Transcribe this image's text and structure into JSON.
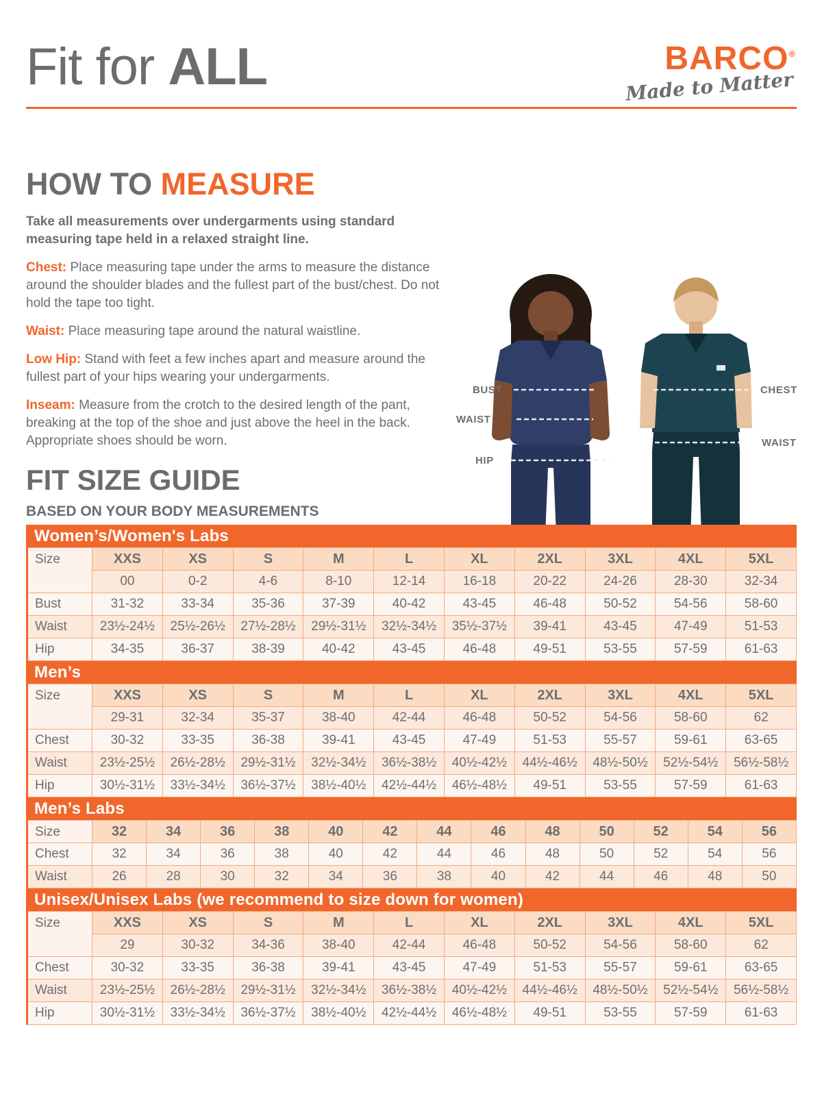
{
  "page_title": {
    "regular": "Fit for ",
    "bold": "ALL"
  },
  "brand": {
    "name": "BARCO",
    "registered": "®",
    "tagline": "Made to Matter"
  },
  "how_to_measure": {
    "heading_gray": "HOW TO ",
    "heading_orange": "MEASURE",
    "intro": "Take all measurements over undergarments using standard measuring tape held in a relaxed straight line.",
    "items": [
      {
        "label": "Chest:",
        "text": "Place measuring tape under the arms to measure the distance around the shoulder blades and the fullest part of the bust/chest. Do not hold the tape too tight."
      },
      {
        "label": "Waist:",
        "text": "Place measuring tape around the natural waistline."
      },
      {
        "label": "Low Hip:",
        "text": "Stand with feet a few inches apart and measure around the fullest part of your hips wearing your undergarments."
      },
      {
        "label": "Inseam:",
        "text": "Measure from the crotch to the desired length of the pant, breaking at the top of the shoe and just above the heel in the back. Appropriate shoes should be worn."
      }
    ]
  },
  "figure": {
    "woman_labels": [
      "BUST",
      "WAIST",
      "HIP"
    ],
    "man_labels": [
      "CHEST",
      "WAIST"
    ]
  },
  "size_guide": {
    "heading": "FIT SIZE GUIDE",
    "subheading": "BASED ON YOUR BODY MEASUREMENTS",
    "tables": [
      {
        "title": "Women’s/Women's Labs",
        "corner": "Size",
        "sizes": [
          "XXS",
          "XS",
          "S",
          "M",
          "L",
          "XL",
          "2XL",
          "3XL",
          "4XL",
          "5XL"
        ],
        "numeric": [
          "00",
          "0-2",
          "4-6",
          "8-10",
          "12-14",
          "16-18",
          "20-22",
          "24-26",
          "28-30",
          "32-34"
        ],
        "rows": [
          {
            "label": "Bust",
            "values": [
              "31-32",
              "33-34",
              "35-36",
              "37-39",
              "40-42",
              "43-45",
              "46-48",
              "50-52",
              "54-56",
              "58-60"
            ]
          },
          {
            "label": "Waist",
            "values": [
              "23½-24½",
              "25½-26½",
              "27½-28½",
              "29½-31½",
              "32½-34½",
              "35½-37½",
              "39-41",
              "43-45",
              "47-49",
              "51-53"
            ]
          },
          {
            "label": "Hip",
            "values": [
              "34-35",
              "36-37",
              "38-39",
              "40-42",
              "43-45",
              "46-48",
              "49-51",
              "53-55",
              "57-59",
              "61-63"
            ]
          }
        ]
      },
      {
        "title": "Men’s",
        "corner": "Size",
        "sizes": [
          "XXS",
          "XS",
          "S",
          "M",
          "L",
          "XL",
          "2XL",
          "3XL",
          "4XL",
          "5XL"
        ],
        "numeric": [
          "29-31",
          "32-34",
          "35-37",
          "38-40",
          "42-44",
          "46-48",
          "50-52",
          "54-56",
          "58-60",
          "62"
        ],
        "rows": [
          {
            "label": "Chest",
            "values": [
              "30-32",
              "33-35",
              "36-38",
              "39-41",
              "43-45",
              "47-49",
              "51-53",
              "55-57",
              "59-61",
              "63-65"
            ]
          },
          {
            "label": "Waist",
            "values": [
              "23½-25½",
              "26½-28½",
              "29½-31½",
              "32½-34½",
              "36½-38½",
              "40½-42½",
              "44½-46½",
              "48½-50½",
              "52½-54½",
              "56½-58½"
            ]
          },
          {
            "label": "Hip",
            "values": [
              "30½-31½",
              "33½-34½",
              "36½-37½",
              "38½-40½",
              "42½-44½",
              "46½-48½",
              "49-51",
              "53-55",
              "57-59",
              "61-63"
            ]
          }
        ]
      },
      {
        "title": "Men’s Labs",
        "corner": "Size",
        "sizes": [
          "32",
          "34",
          "36",
          "38",
          "40",
          "42",
          "44",
          "46",
          "48",
          "50",
          "52",
          "54",
          "56"
        ],
        "rows": [
          {
            "label": "Chest",
            "values": [
              "32",
              "34",
              "36",
              "38",
              "40",
              "42",
              "44",
              "46",
              "48",
              "50",
              "52",
              "54",
              "56"
            ]
          },
          {
            "label": "Waist",
            "values": [
              "26",
              "28",
              "30",
              "32",
              "34",
              "36",
              "38",
              "40",
              "42",
              "44",
              "46",
              "48",
              "50"
            ]
          }
        ]
      },
      {
        "title": "Unisex/Unisex Labs (we recommend to size down for women)",
        "corner": "Size",
        "sizes": [
          "XXS",
          "XS",
          "S",
          "M",
          "L",
          "XL",
          "2XL",
          "3XL",
          "4XL",
          "5XL"
        ],
        "numeric": [
          "29",
          "30-32",
          "34-36",
          "38-40",
          "42-44",
          "46-48",
          "50-52",
          "54-56",
          "58-60",
          "62"
        ],
        "rows": [
          {
            "label": "Chest",
            "values": [
              "30-32",
              "33-35",
              "36-38",
              "39-41",
              "43-45",
              "47-49",
              "51-53",
              "55-57",
              "59-61",
              "63-65"
            ]
          },
          {
            "label": "Waist",
            "values": [
              "23½-25½",
              "26½-28½",
              "29½-31½",
              "32½-34½",
              "36½-38½",
              "40½-42½",
              "44½-46½",
              "48½-50½",
              "52½-54½",
              "56½-58½"
            ]
          },
          {
            "label": "Hip",
            "values": [
              "30½-31½",
              "33½-34½",
              "36½-37½",
              "38½-40½",
              "42½-44½",
              "46½-48½",
              "49-51",
              "53-55",
              "57-59",
              "61-63"
            ]
          }
        ]
      }
    ]
  },
  "colors": {
    "orange": "#F1662B",
    "gray_text": "#6D6E71",
    "table_border": "#F5A97E",
    "peach_dark": "#FBDCC2",
    "peach_mid": "#FCE9DB",
    "peach_light": "#FDF5F0",
    "woman_scrub_navy": "#303F68",
    "man_scrub_teal": "#1D4350"
  }
}
